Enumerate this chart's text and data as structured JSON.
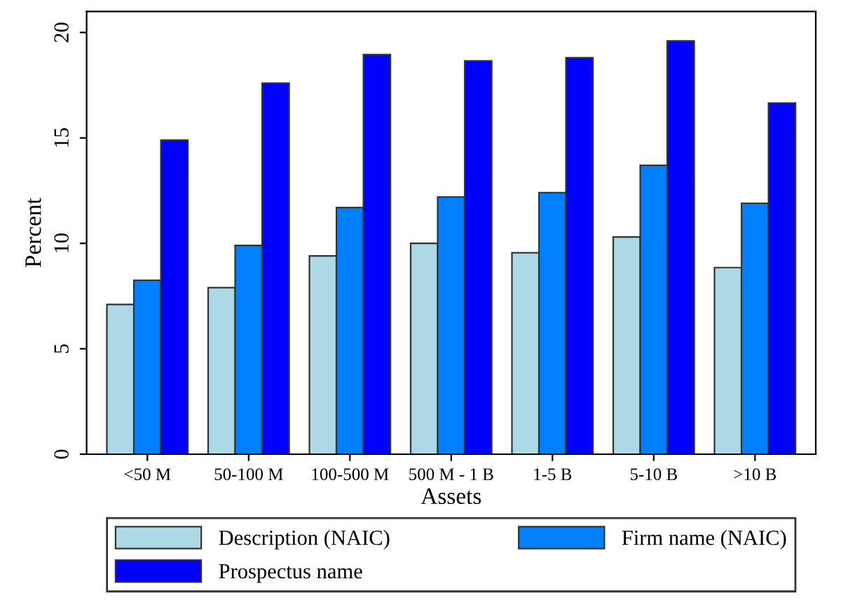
{
  "chart_data": {
    "type": "bar",
    "xlabel": "Assets",
    "ylabel": "Percent",
    "categories": [
      "<50 M",
      "50-100 M",
      "100-500 M",
      "500 M - 1 B",
      "1-5 B",
      "5-10 B",
      ">10 B"
    ],
    "series": [
      {
        "name": "Description (NAIC)",
        "color": "#add8e6",
        "values": [
          7.1,
          7.9,
          9.4,
          10.0,
          9.55,
          10.3,
          8.85
        ]
      },
      {
        "name": "Firm name (NAIC)",
        "color": "#0080ff",
        "values": [
          8.25,
          9.9,
          11.7,
          12.2,
          12.4,
          13.7,
          11.9
        ]
      },
      {
        "name": "Prospectus name",
        "color": "#0000ff",
        "values": [
          14.9,
          17.6,
          18.95,
          18.65,
          18.8,
          19.6,
          16.65
        ]
      }
    ],
    "ylim": [
      0,
      21
    ],
    "yticks": [
      0,
      5,
      10,
      15,
      20
    ],
    "grid": false,
    "legend": "bottom"
  }
}
